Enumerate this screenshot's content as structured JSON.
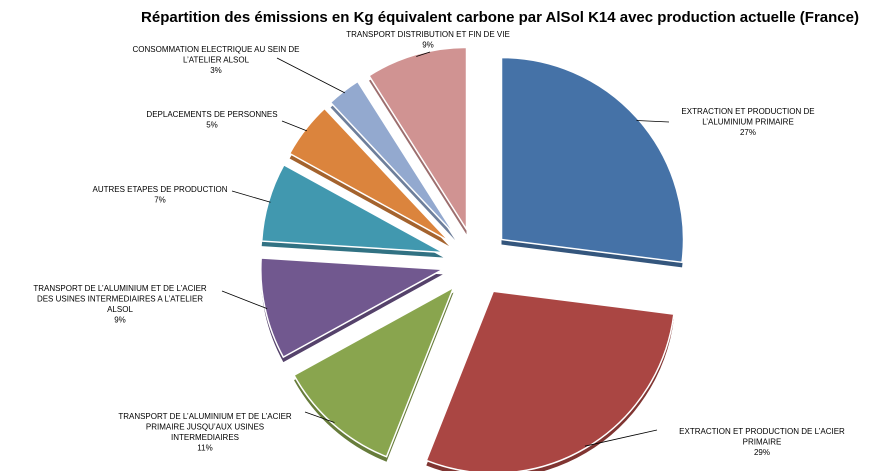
{
  "chart_data": {
    "type": "pie",
    "title": "Répartition des émissions en Kg équivalent carbone par AlSol K14 avec production actuelle (France)",
    "slices": [
      {
        "label": [
          "EXTRACTION ET PRODUCTION DE",
          "L’ALUMINIUM PRIMAIRE"
        ],
        "value": 27,
        "pct": "27%",
        "color": "#4572a7"
      },
      {
        "label": [
          "EXTRACTION ET PRODUCTION DE L’ACIER",
          "PRIMAIRE"
        ],
        "value": 29,
        "pct": "29%",
        "color": "#aa4643"
      },
      {
        "label": [
          "TRANSPORT DE L’ALUMINIUM ET DE L’ACIER",
          "PRIMAIRE JUSQU’AUX USINES",
          "INTERMEDIAIRES"
        ],
        "value": 11,
        "pct": "11%",
        "color": "#89a54e"
      },
      {
        "label": [
          "TRANSPORT DE L’ALUMINIUM  ET DE L’ACIER",
          "DES USINES INTERMEDIAIRES A L’ATELIER",
          "ALSOL"
        ],
        "value": 9,
        "pct": "9%",
        "color": "#71588f"
      },
      {
        "label": [
          "AUTRES ETAPES DE PRODUCTION"
        ],
        "value": 7,
        "pct": "7%",
        "color": "#4198af"
      },
      {
        "label": [
          "DEPLACEMENTS DE PERSONNES"
        ],
        "value": 5,
        "pct": "5%",
        "color": "#db843d"
      },
      {
        "label": [
          "CONSOMMATION ELECTRIQUE AU SEIN DE",
          "L’ATELIER ALSOL"
        ],
        "value": 3,
        "pct": "3%",
        "color": "#93a9cf"
      },
      {
        "label": [
          "TRANSPORT DISTRIBUTION ET FIN DE VIE"
        ],
        "value": 9,
        "pct": "9%",
        "color": "#d09392"
      }
    ]
  }
}
